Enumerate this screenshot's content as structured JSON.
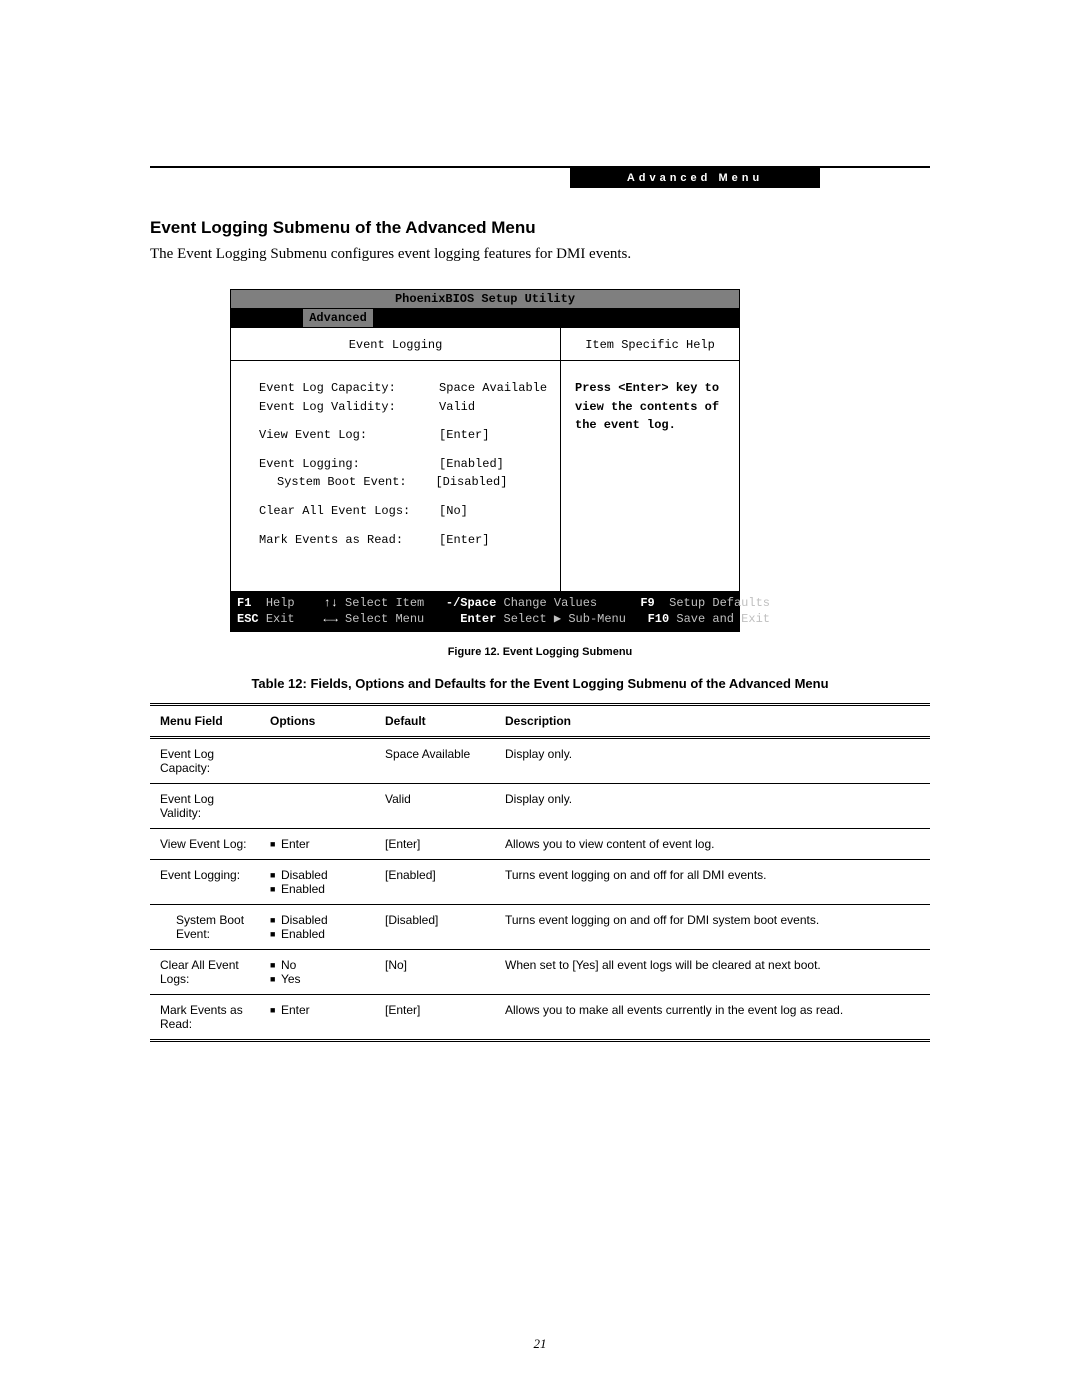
{
  "header": {
    "bar_text": "Advanced Menu"
  },
  "section": {
    "title": "Event Logging Submenu of the Advanced Menu",
    "intro": "The Event Logging Submenu configures event logging features for DMI events."
  },
  "bios": {
    "title": "PhoenixBIOS Setup Utility",
    "active_tab": "Advanced",
    "panel_title": "Event Logging",
    "help_title": "Item Specific Help",
    "help_text": "Press <Enter> key to view the contents of the event log.",
    "rows": {
      "r1_label": "Event Log Capacity:",
      "r1_value": "Space Available",
      "r2_label": "Event Log Validity:",
      "r2_value": "Valid",
      "r3_label": "View Event Log:",
      "r3_value": "[Enter]",
      "r4_label": "Event Logging:",
      "r4_value": "[Enabled]",
      "r5_label": "System Boot Event:",
      "r5_value": "[Disabled]",
      "r6_label": "Clear All Event Logs:",
      "r6_value": "[No]",
      "r7_label": "Mark Events as Read:",
      "r7_value": "[Enter]"
    },
    "footer": {
      "f1_k": "F1",
      "f1_l": "Help",
      "f2_k": "↑↓",
      "f2_l": "Select Item",
      "f3_k": "-/Space",
      "f3_l": "Change Values",
      "f4_k": "F9",
      "f4_l": "Setup Defaults",
      "g1_k": "ESC",
      "g1_l": "Exit",
      "g2_k": "←→",
      "g2_l": "Select Menu",
      "g3_k": "Enter",
      "g3_l": "Select ▶ Sub-Menu",
      "g4_k": "F10",
      "g4_l": "Save and Exit"
    }
  },
  "figure_caption": "Figure 12.  Event Logging Submenu",
  "table_title": "Table 12: Fields, Options and Defaults for the Event Logging Submenu of the Advanced Menu",
  "table": {
    "headers": {
      "c1": "Menu Field",
      "c2": "Options",
      "c3": "Default",
      "c4": "Description"
    },
    "rows": [
      {
        "mf": "Event Log Capacity:",
        "indent": false,
        "opts": [],
        "def": "Space Available",
        "desc": "Display only."
      },
      {
        "mf": "Event Log Validity:",
        "indent": false,
        "opts": [],
        "def": "Valid",
        "desc": "Display only."
      },
      {
        "mf": "View Event Log:",
        "indent": false,
        "opts": [
          "Enter"
        ],
        "def": "[Enter]",
        "desc": "Allows you to view content of event log."
      },
      {
        "mf": "Event Logging:",
        "indent": false,
        "opts": [
          "Disabled",
          "Enabled"
        ],
        "def": "[Enabled]",
        "desc": "Turns event logging on and off for all DMI events."
      },
      {
        "mf": "System Boot Event:",
        "indent": true,
        "opts": [
          "Disabled",
          "Enabled"
        ],
        "def": "[Disabled]",
        "desc": "Turns event logging on and off for DMI system boot events."
      },
      {
        "mf": "Clear All Event Logs:",
        "indent": false,
        "opts": [
          "No",
          "Yes"
        ],
        "def": "[No]",
        "desc": "When set to [Yes] all event logs will be cleared at next boot."
      },
      {
        "mf": "Mark Events as Read:",
        "indent": false,
        "opts": [
          "Enter"
        ],
        "def": "[Enter]",
        "desc": "Allows you to make all events currently in the event log as read."
      }
    ]
  },
  "page_number": "21"
}
